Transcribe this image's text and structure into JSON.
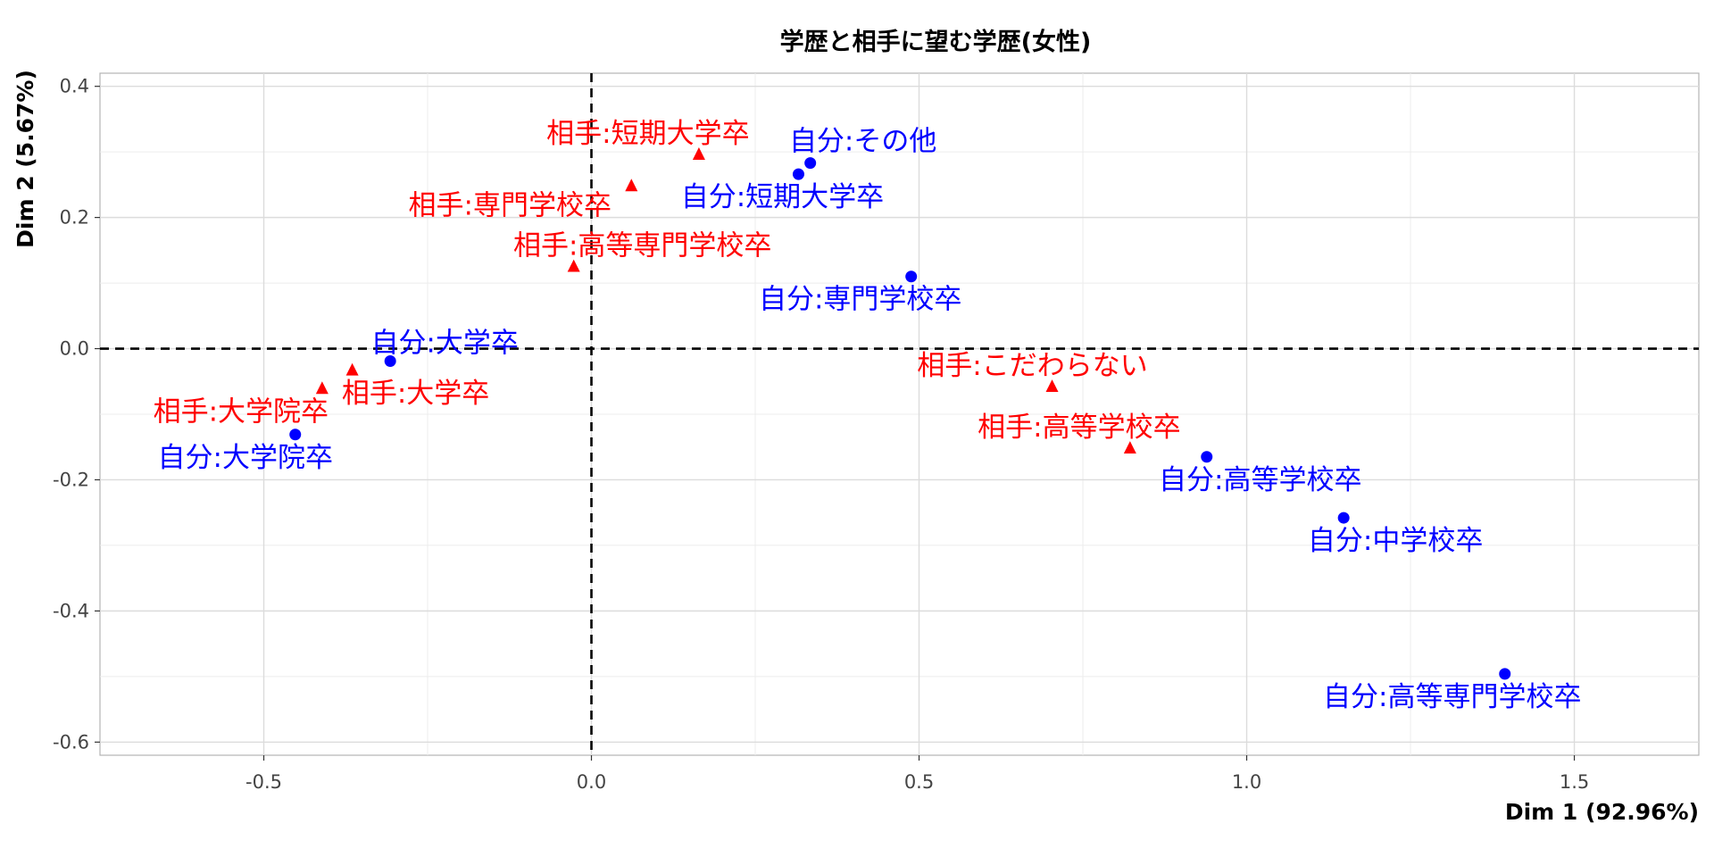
{
  "chart_data": {
    "type": "scatter",
    "title": "学歴と相手に望む学歴(女性)",
    "xlabel": "Dim 1 (92.96%)",
    "ylabel": "Dim 2 (5.67%)",
    "xlim": [
      -0.75,
      1.69
    ],
    "ylim": [
      -0.62,
      0.42
    ],
    "x_ticks": [
      -0.5,
      0.0,
      0.5,
      1.0,
      1.5
    ],
    "x_tick_labels": [
      "-0.5",
      "0.0",
      "0.5",
      "1.0",
      "1.5"
    ],
    "y_ticks": [
      -0.6,
      -0.4,
      -0.2,
      0.0,
      0.2,
      0.4
    ],
    "y_tick_labels": [
      "-0.6",
      "-0.4",
      "-0.2",
      "0.0",
      "0.2",
      "0.4"
    ],
    "grid": true,
    "reference_lines": {
      "x": 0,
      "y": 0,
      "style": "dashed"
    },
    "colors": {
      "row_points": "#0000FF",
      "column_points": "#FF0000"
    },
    "series": [
      {
        "marker": "circle",
        "color": "#0000FF",
        "points": [
          {
            "label": "自分:その他",
            "x": 0.334,
            "y": 0.283
          },
          {
            "label": "自分:短期大学卒",
            "x": 0.316,
            "y": 0.266
          },
          {
            "label": "自分:専門学校卒",
            "x": 0.488,
            "y": 0.11
          },
          {
            "label": "自分:大学卒",
            "x": -0.307,
            "y": -0.019
          },
          {
            "label": "自分:大学院卒",
            "x": -0.452,
            "y": -0.131
          },
          {
            "label": "自分:高等学校卒",
            "x": 0.939,
            "y": -0.165
          },
          {
            "label": "自分:中学校卒",
            "x": 1.148,
            "y": -0.258
          },
          {
            "label": "自分:高等専門学校卒",
            "x": 1.394,
            "y": -0.496
          }
        ]
      },
      {
        "marker": "triangle",
        "color": "#FF0000",
        "points": [
          {
            "label": "相手:短期大学卒",
            "x": 0.164,
            "y": 0.296
          },
          {
            "label": "相手:専門学校卒",
            "x": 0.061,
            "y": 0.248
          },
          {
            "label": "相手:高等専門学校卒",
            "x": -0.027,
            "y": 0.125
          },
          {
            "label": "相手:大学卒",
            "x": -0.365,
            "y": -0.033
          },
          {
            "label": "相手:大学院卒",
            "x": -0.411,
            "y": -0.061
          },
          {
            "label": "相手:こだわらない",
            "x": 0.703,
            "y": -0.058
          },
          {
            "label": "相手:高等学校卒",
            "x": 0.822,
            "y": -0.152
          }
        ]
      }
    ]
  }
}
